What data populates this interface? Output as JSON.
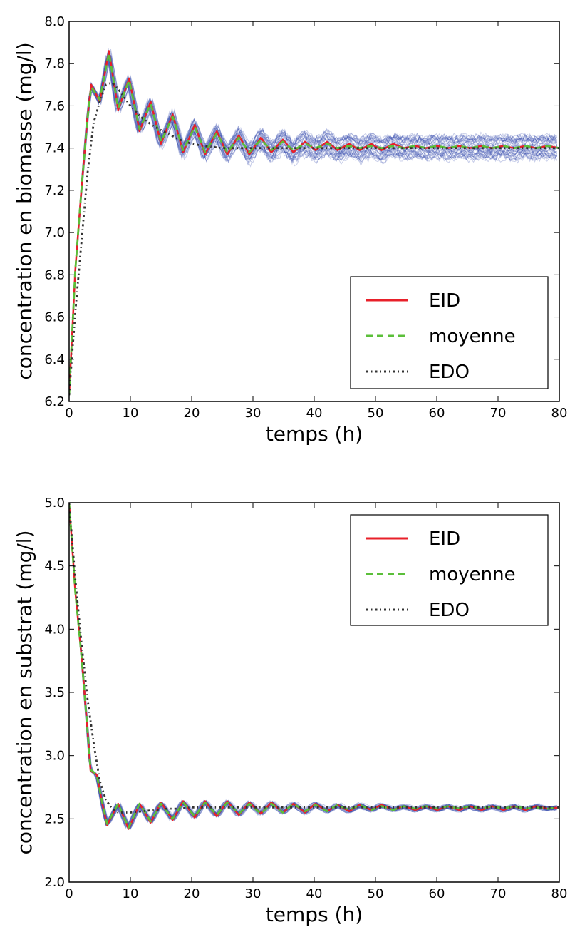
{
  "chart_data": [
    {
      "type": "line",
      "xlabel": "temps (h)",
      "ylabel": "concentration en biomasse (mg/l)",
      "xlim": [
        0,
        80
      ],
      "ylim": [
        6.2,
        8.0
      ],
      "xticks": [
        "0",
        "10",
        "20",
        "30",
        "40",
        "50",
        "60",
        "70",
        "80"
      ],
      "yticks": [
        "6.2",
        "6.4",
        "6.6",
        "6.8",
        "7.0",
        "7.2",
        "7.4",
        "7.6",
        "7.8",
        "8.0"
      ],
      "legend_position": "lower-right",
      "colors": {
        "EID": "#e8202a",
        "moyenne": "#5bbf3a",
        "EDO": "#333333",
        "ensemble": "#3b4fb0"
      },
      "series": [
        {
          "name": "EID",
          "x": [
            0,
            1,
            2,
            3,
            3.6,
            5,
            6.5,
            8,
            9.8,
            11.5,
            13.3,
            15,
            16.9,
            18.6,
            20.5,
            22.2,
            24.1,
            25.8,
            27.7,
            29.4,
            31.3,
            33,
            34.9,
            36.6,
            38.5,
            40.2,
            42.1,
            43.8,
            45.7,
            47.4,
            49.3,
            51,
            52.9,
            54.6,
            56.5,
            58.2,
            60.1,
            61.8,
            63.7,
            65.4,
            67.3,
            69,
            70.9,
            72.6,
            74.5,
            76.2,
            78.1,
            80
          ],
          "y": [
            6.23,
            6.82,
            7.2,
            7.55,
            7.7,
            7.62,
            7.86,
            7.58,
            7.73,
            7.48,
            7.62,
            7.42,
            7.56,
            7.38,
            7.51,
            7.37,
            7.48,
            7.37,
            7.46,
            7.37,
            7.45,
            7.38,
            7.44,
            7.38,
            7.43,
            7.39,
            7.43,
            7.39,
            7.42,
            7.39,
            7.42,
            7.39,
            7.42,
            7.4,
            7.41,
            7.4,
            7.41,
            7.4,
            7.41,
            7.4,
            7.41,
            7.4,
            7.41,
            7.4,
            7.41,
            7.4,
            7.41,
            7.4
          ]
        },
        {
          "name": "moyenne",
          "x": [
            0,
            1,
            2,
            3,
            3.6,
            5,
            6.5,
            8,
            9.8,
            11.5,
            13.3,
            15,
            16.9,
            18.6,
            20.5,
            22.2,
            24.1,
            25.8,
            27.7,
            29.4,
            31.3,
            33,
            34.9,
            36.6,
            38.5,
            40.2,
            42.1,
            43.8,
            45.7,
            47.4,
            49.3,
            51,
            52.9,
            54.6,
            56.5,
            58.2,
            60.1,
            61.8,
            63.7,
            65.4,
            67.3,
            69,
            70.9,
            72.6,
            74.5,
            76.2,
            78.1,
            80
          ],
          "y": [
            6.23,
            6.82,
            7.2,
            7.54,
            7.69,
            7.63,
            7.85,
            7.59,
            7.72,
            7.49,
            7.61,
            7.43,
            7.55,
            7.39,
            7.5,
            7.38,
            7.47,
            7.38,
            7.45,
            7.38,
            7.44,
            7.39,
            7.43,
            7.39,
            7.42,
            7.4,
            7.42,
            7.4,
            7.41,
            7.4,
            7.41,
            7.4,
            7.41,
            7.4,
            7.41,
            7.4,
            7.41,
            7.4,
            7.41,
            7.4,
            7.41,
            7.4,
            7.41,
            7.4,
            7.41,
            7.4,
            7.41,
            7.4
          ]
        },
        {
          "name": "EDO",
          "x": [
            0,
            1,
            2,
            3,
            4,
            5,
            6,
            7,
            8,
            9,
            10,
            12,
            14,
            16,
            18,
            20,
            22,
            25,
            30,
            35,
            40,
            50,
            60,
            70,
            80
          ],
          "y": [
            6.23,
            6.62,
            6.95,
            7.28,
            7.52,
            7.62,
            7.7,
            7.71,
            7.68,
            7.64,
            7.6,
            7.54,
            7.5,
            7.47,
            7.44,
            7.42,
            7.41,
            7.4,
            7.4,
            7.4,
            7.4,
            7.4,
            7.4,
            7.4,
            7.4
          ]
        }
      ]
    },
    {
      "type": "line",
      "xlabel": "temps (h)",
      "ylabel": "concentration en substrat (mg/l)",
      "xlim": [
        0,
        80
      ],
      "ylim": [
        2.0,
        5.0
      ],
      "xticks": [
        "0",
        "10",
        "20",
        "30",
        "40",
        "50",
        "60",
        "70",
        "80"
      ],
      "yticks": [
        "2.0",
        "2.5",
        "3.0",
        "3.5",
        "4.0",
        "4.5",
        "5.0"
      ],
      "legend_position": "upper-right",
      "colors": {
        "EID": "#e8202a",
        "moyenne": "#5bbf3a",
        "EDO": "#333333",
        "ensemble": "#3b4fb0"
      },
      "series": [
        {
          "name": "EID",
          "x": [
            0,
            1,
            2,
            3,
            3.5,
            4.5,
            5.5,
            6.2,
            8,
            9.7,
            11.5,
            13.3,
            15,
            16.9,
            18.6,
            20.5,
            22.2,
            24.1,
            25.8,
            27.7,
            29.4,
            31.3,
            33,
            34.9,
            36.6,
            38.5,
            40.2,
            42.1,
            43.8,
            45.7,
            47.4,
            49.3,
            51,
            52.9,
            54.6,
            56.5,
            58.2,
            60.1,
            61.8,
            63.7,
            65.4,
            67.3,
            69,
            70.9,
            72.6,
            74.5,
            76.2,
            78.1,
            80
          ],
          "y": [
            5.0,
            4.3,
            3.8,
            3.2,
            2.88,
            2.85,
            2.6,
            2.45,
            2.62,
            2.42,
            2.62,
            2.47,
            2.63,
            2.49,
            2.64,
            2.51,
            2.64,
            2.52,
            2.64,
            2.53,
            2.63,
            2.54,
            2.63,
            2.55,
            2.62,
            2.55,
            2.62,
            2.56,
            2.61,
            2.56,
            2.61,
            2.57,
            2.61,
            2.57,
            2.6,
            2.57,
            2.6,
            2.57,
            2.6,
            2.57,
            2.6,
            2.57,
            2.6,
            2.57,
            2.6,
            2.57,
            2.6,
            2.58,
            2.59
          ]
        },
        {
          "name": "moyenne",
          "x": [
            0,
            1,
            2,
            3,
            3.5,
            4.5,
            5.5,
            6.2,
            8,
            9.7,
            11.5,
            13.3,
            15,
            16.9,
            18.6,
            20.5,
            22.2,
            24.1,
            25.8,
            27.7,
            29.4,
            31.3,
            33,
            34.9,
            36.6,
            38.5,
            40.2,
            42.1,
            43.8,
            45.7,
            47.4,
            49.3,
            51,
            52.9,
            54.6,
            56.5,
            58.2,
            60.1,
            61.8,
            63.7,
            65.4,
            67.3,
            69,
            70.9,
            72.6,
            74.5,
            76.2,
            78.1,
            80
          ],
          "y": [
            5.0,
            4.3,
            3.8,
            3.2,
            2.89,
            2.85,
            2.61,
            2.46,
            2.62,
            2.43,
            2.62,
            2.48,
            2.62,
            2.5,
            2.63,
            2.52,
            2.63,
            2.53,
            2.63,
            2.54,
            2.62,
            2.54,
            2.62,
            2.55,
            2.62,
            2.56,
            2.61,
            2.56,
            2.61,
            2.57,
            2.61,
            2.57,
            2.6,
            2.57,
            2.6,
            2.58,
            2.6,
            2.58,
            2.6,
            2.58,
            2.6,
            2.58,
            2.6,
            2.58,
            2.6,
            2.58,
            2.59,
            2.58,
            2.59
          ]
        },
        {
          "name": "EDO",
          "x": [
            0,
            1,
            2,
            3,
            4,
            5,
            6,
            7,
            8,
            10,
            12,
            14,
            16,
            18,
            20,
            25,
            30,
            40,
            50,
            60,
            70,
            80
          ],
          "y": [
            5.0,
            4.4,
            3.9,
            3.45,
            3.1,
            2.8,
            2.65,
            2.58,
            2.55,
            2.55,
            2.56,
            2.57,
            2.58,
            2.58,
            2.59,
            2.59,
            2.59,
            2.59,
            2.59,
            2.59,
            2.59,
            2.59
          ]
        }
      ]
    }
  ]
}
